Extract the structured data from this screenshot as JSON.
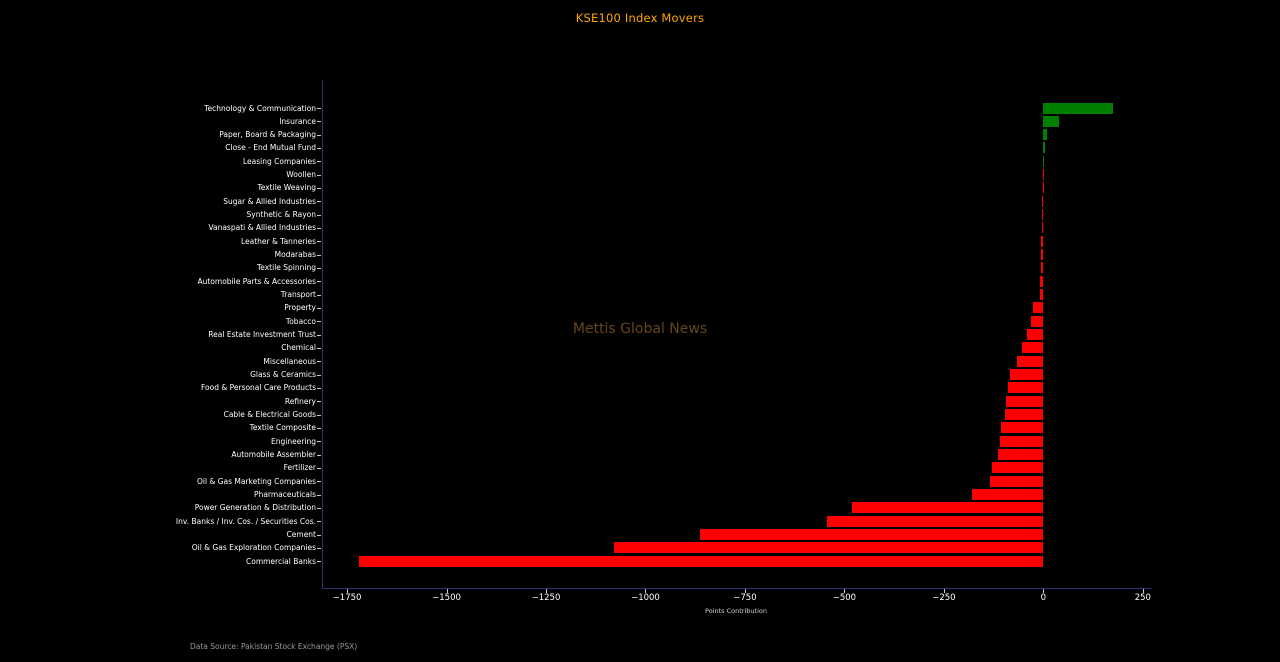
{
  "title": "KSE100 Index Movers",
  "watermark": "Mettis Global News",
  "footer": "Data Source: Pakistan Stock Exchange (PSX)",
  "colors": {
    "background": "#000000",
    "title": "#ffa500",
    "positive_bar": "#008000",
    "negative_bar": "#ff0000",
    "axis_spine": "#2e2e72",
    "tick_text": "#ffffff",
    "watermark": "rgba(255,175,60,0.40)",
    "footer_text": "#9a9a9a"
  },
  "chart_data": {
    "type": "bar",
    "orientation": "horizontal",
    "title": "KSE100 Index Movers",
    "xlabel": "Points Contribution",
    "ylabel": "",
    "grid": false,
    "legend": "none",
    "xlim": [
      -1813,
      268
    ],
    "x_ticks": [
      -1750,
      -1500,
      -1250,
      -1000,
      -750,
      -500,
      -250,
      0,
      250
    ],
    "categories": [
      "Technology & Communication",
      "Insurance",
      "Paper, Board & Packaging",
      "Close - End Mutual Fund",
      "Leasing Companies",
      "Woollen",
      "Textile Weaving",
      "Sugar & Allied Industries",
      "Synthetic & Rayon",
      "Vanaspati & Allied Industries",
      "Leather & Tanneries",
      "Modarabas",
      "Textile Spinning",
      "Automobile Parts & Accessories",
      "Transport",
      "Property",
      "Tobacco",
      "Real Estate Investment Trust",
      "Chemical",
      "Miscellaneous",
      "Glass & Ceramics",
      "Food & Personal Care Products",
      "Refinery",
      "Cable & Electrical Goods",
      "Textile Composite",
      "Engineering",
      "Automobile Assembler",
      "Fertilizer",
      "Oil & Gas Marketing Companies",
      "Pharmaceuticals",
      "Power Generation & Distribution",
      "Inv. Banks / Inv. Cos. / Securities Cos.",
      "Cement",
      "Oil & Gas Exploration Companies",
      "Commercial Banks"
    ],
    "values": [
      176,
      40,
      8,
      3,
      1,
      -1,
      -2,
      -3,
      -4,
      -4,
      -5,
      -5,
      -6,
      -8,
      -9,
      -27,
      -30,
      -42,
      -53,
      -66,
      -85,
      -89,
      -94,
      -97,
      -106,
      -109,
      -115,
      -130,
      -135,
      -180,
      -480,
      -543,
      -863,
      -1080,
      -1719
    ]
  }
}
